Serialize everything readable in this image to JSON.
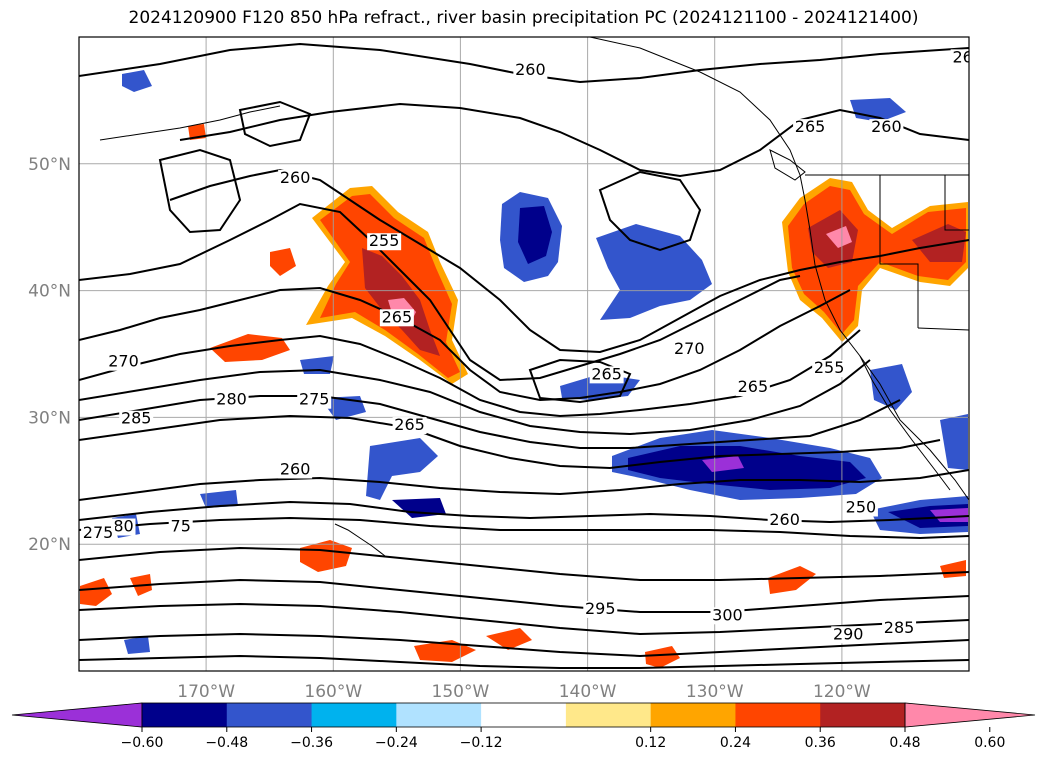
{
  "title": "2024120900 F120 850 hPa refract., river basin precipitation PC (2024121100 - 2024121400)",
  "chart_data": {
    "type": "contour-map",
    "x_axis": {
      "range": [
        -180,
        -110
      ],
      "ticks": [
        -170,
        -160,
        -150,
        -140,
        -130,
        -120
      ],
      "tick_labels": [
        "170°W",
        "160°W",
        "150°W",
        "140°W",
        "130°W",
        "120°W"
      ]
    },
    "y_axis": {
      "range": [
        10,
        60
      ],
      "ticks": [
        20,
        30,
        40,
        50
      ],
      "tick_labels": [
        "20°N",
        "30°N",
        "40°N",
        "50°N"
      ]
    },
    "grid": true,
    "colorbar": {
      "orientation": "horizontal",
      "extend": "both",
      "ticks": [
        "−0.60",
        "−0.48",
        "−0.36",
        "−0.24",
        "−0.12",
        "0.12",
        "0.24",
        "0.36",
        "0.48",
        "0.60"
      ],
      "colors": [
        "#9b30d8",
        "#00008b",
        "#3355cc",
        "#00b2ee",
        "#b0e2ff",
        "#ffffff",
        "#ffe88a",
        "#ffa500",
        "#ff4500",
        "#b22222",
        "#ff88aa"
      ]
    },
    "contour_labels": [
      {
        "text": "260",
        "lon": -144.5,
        "lat": 57.0
      },
      {
        "text": "265",
        "lon": -122.5,
        "lat": 52.5
      },
      {
        "text": "260",
        "lon": -116.5,
        "lat": 52.5
      },
      {
        "text": "26",
        "lon": -110.5,
        "lat": 58.0
      },
      {
        "text": "260",
        "lon": -163.0,
        "lat": 48.5
      },
      {
        "text": "255",
        "lon": -156.0,
        "lat": 43.5
      },
      {
        "text": "265",
        "lon": -155.0,
        "lat": 37.5
      },
      {
        "text": "270",
        "lon": -176.5,
        "lat": 34.0
      },
      {
        "text": "285",
        "lon": -175.5,
        "lat": 29.5
      },
      {
        "text": "280",
        "lon": -168.0,
        "lat": 31.0
      },
      {
        "text": "275",
        "lon": -161.5,
        "lat": 31.0
      },
      {
        "text": "265",
        "lon": -154.0,
        "lat": 29.0
      },
      {
        "text": "265",
        "lon": -138.5,
        "lat": 33.0
      },
      {
        "text": "270",
        "lon": -132.0,
        "lat": 35.0
      },
      {
        "text": "265",
        "lon": -127.0,
        "lat": 32.0
      },
      {
        "text": "255",
        "lon": -121.0,
        "lat": 33.5
      },
      {
        "text": "260",
        "lon": -163.0,
        "lat": 25.5
      },
      {
        "text": "80",
        "lon": -176.5,
        "lat": 21.0
      },
      {
        "text": "275",
        "lon": -178.5,
        "lat": 20.5
      },
      {
        "text": "75",
        "lon": -172.0,
        "lat": 21.0
      },
      {
        "text": "260",
        "lon": -124.5,
        "lat": 21.5
      },
      {
        "text": "250",
        "lon": -118.5,
        "lat": 22.5
      },
      {
        "text": "295",
        "lon": -139.0,
        "lat": 14.5
      },
      {
        "text": "300",
        "lon": -129.0,
        "lat": 14.0
      },
      {
        "text": "290",
        "lon": -119.5,
        "lat": 12.5
      },
      {
        "text": "285",
        "lon": -115.5,
        "lat": 13.0
      }
    ]
  }
}
